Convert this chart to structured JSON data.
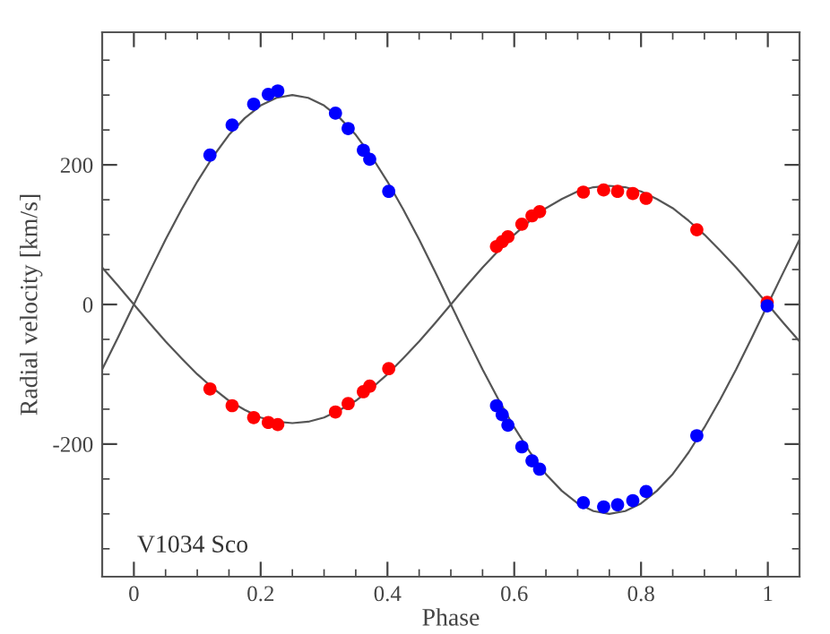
{
  "chart_data": {
    "type": "scatter",
    "xlabel": "Phase",
    "ylabel": "Radial velocity [km/s]",
    "xlim": [
      -0.05,
      1.05
    ],
    "ylim": [
      -390,
      390
    ],
    "xticks": [
      0,
      0.2,
      0.4,
      0.6,
      0.8,
      1
    ],
    "yticks": [
      -200,
      0,
      200
    ],
    "grid": false,
    "legend": false,
    "annotations": [
      "V1034 Sco"
    ],
    "series": [
      {
        "type": "line",
        "marker": "none",
        "color": "#555555",
        "x": [
          -0.05,
          -0.025,
          0,
          0.025,
          0.05,
          0.075,
          0.1,
          0.125,
          0.15,
          0.175,
          0.2,
          0.225,
          0.25,
          0.275,
          0.3,
          0.325,
          0.35,
          0.375,
          0.4,
          0.425,
          0.45,
          0.475,
          0.5,
          0.525,
          0.55,
          0.575,
          0.6,
          0.625,
          0.65,
          0.675,
          0.7,
          0.725,
          0.75,
          0.775,
          0.8,
          0.825,
          0.85,
          0.875,
          0.9,
          0.925,
          0.95,
          0.975,
          1,
          1.025,
          1.05
        ],
        "values": [
          -93,
          -47,
          0,
          47,
          93,
          136,
          176,
          212,
          243,
          267,
          285,
          296,
          300,
          296,
          285,
          267,
          243,
          212,
          176,
          136,
          93,
          47,
          0,
          -47,
          -93,
          -136,
          -176,
          -212,
          -243,
          -267,
          -285,
          -296,
          -300,
          -296,
          -285,
          -267,
          -243,
          -212,
          -176,
          -136,
          -93,
          -47,
          0,
          47,
          93
        ]
      },
      {
        "type": "line",
        "marker": "none",
        "color": "#555555",
        "x": [
          -0.05,
          -0.025,
          0,
          0.025,
          0.05,
          0.075,
          0.1,
          0.125,
          0.15,
          0.175,
          0.2,
          0.225,
          0.25,
          0.275,
          0.3,
          0.325,
          0.35,
          0.375,
          0.4,
          0.425,
          0.45,
          0.475,
          0.5,
          0.525,
          0.55,
          0.575,
          0.6,
          0.625,
          0.65,
          0.675,
          0.7,
          0.725,
          0.75,
          0.775,
          0.8,
          0.825,
          0.85,
          0.875,
          0.9,
          0.925,
          0.95,
          0.975,
          1,
          1.025,
          1.05
        ],
        "values": [
          53,
          27,
          0,
          -27,
          -53,
          -77,
          -100,
          -120,
          -138,
          -151,
          -162,
          -168,
          -170,
          -168,
          -162,
          -151,
          -138,
          -120,
          -100,
          -77,
          -53,
          -27,
          0,
          27,
          53,
          77,
          100,
          120,
          138,
          151,
          162,
          168,
          170,
          168,
          162,
          151,
          138,
          120,
          100,
          77,
          53,
          27,
          0,
          -27,
          -53
        ]
      },
      {
        "marker": "circle",
        "color": "#ff0000",
        "x": [
          0.12,
          0.155,
          0.189,
          0.212,
          0.227,
          0.318,
          0.338,
          0.362,
          0.372,
          0.402,
          0.572,
          0.581,
          0.59,
          0.612,
          0.628,
          0.64,
          0.709,
          0.741,
          0.763,
          0.787,
          0.808,
          0.888,
          0.999
        ],
        "values": [
          -121,
          -145,
          -162,
          -169,
          -172,
          -154,
          -142,
          -125,
          -117,
          -92,
          83,
          90,
          97,
          115,
          127,
          133,
          161,
          164,
          162,
          159,
          152,
          107,
          3
        ]
      },
      {
        "marker": "circle",
        "color": "#0000ff",
        "x": [
          0.12,
          0.155,
          0.189,
          0.212,
          0.227,
          0.318,
          0.338,
          0.362,
          0.372,
          0.402,
          0.572,
          0.581,
          0.59,
          0.612,
          0.628,
          0.64,
          0.709,
          0.741,
          0.763,
          0.787,
          0.808,
          0.888,
          0.999
        ],
        "values": [
          214,
          257,
          287,
          301,
          306,
          274,
          252,
          221,
          208,
          162,
          -145,
          -158,
          -173,
          -204,
          -224,
          -236,
          -284,
          -290,
          -287,
          -281,
          -268,
          -188,
          -2
        ]
      }
    ]
  }
}
